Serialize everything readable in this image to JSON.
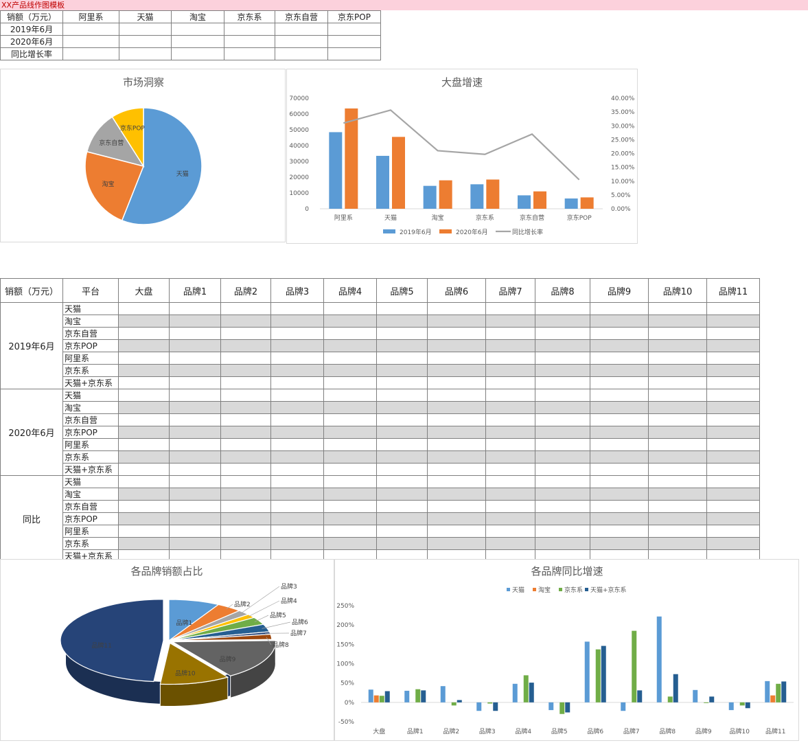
{
  "title_bar": "XX产品线作图模板",
  "top_table": {
    "header": [
      "销额（万元）",
      "阿里系",
      "天猫",
      "淘宝",
      "京东系",
      "京东自营",
      "京东POP"
    ],
    "rows": [
      "2019年6月",
      "2020年6月",
      "同比增长率"
    ]
  },
  "main_table": {
    "header": [
      "销额（万元）",
      "平台",
      "大盘",
      "品牌1",
      "品牌2",
      "品牌3",
      "品牌4",
      "品牌5",
      "品牌6",
      "品牌7",
      "品牌8",
      "品牌9",
      "品牌10",
      "品牌11"
    ],
    "groups": [
      {
        "label": "2019年6月",
        "platforms": [
          "天猫",
          "淘宝",
          "京东自营",
          "京东POP",
          "阿里系",
          "京东系",
          "天猫+京东系"
        ]
      },
      {
        "label": "2020年6月",
        "platforms": [
          "天猫",
          "淘宝",
          "京东自营",
          "京东POP",
          "阿里系",
          "京东系",
          "天猫+京东系"
        ]
      },
      {
        "label": "同比",
        "platforms": [
          "天猫",
          "淘宝",
          "京东自营",
          "京东POP",
          "阿里系",
          "京东系",
          "天猫+京东系"
        ]
      }
    ]
  },
  "colors": {
    "blue": "#5b9bd5",
    "orange": "#ed7d31",
    "gray": "#a5a5a5",
    "yellow": "#ffc000",
    "darkblue": "#264478",
    "green": "#70ad47",
    "navy": "#255e91",
    "brown": "#997300",
    "darkgray": "#636363"
  },
  "chart_data": [
    {
      "type": "pie",
      "title": "市场洞察",
      "labels": [
        "天猫",
        "淘宝",
        "京东自营",
        "京东POP"
      ],
      "values": [
        56,
        23,
        12,
        9
      ]
    },
    {
      "type": "bar",
      "title": "大盘增速",
      "categories": [
        "阿里系",
        "天猫",
        "淘宝",
        "京东系",
        "京东自营",
        "京东POP"
      ],
      "series": [
        {
          "name": "2019年6月",
          "values": [
            48500,
            33500,
            14500,
            15500,
            8500,
            6500
          ]
        },
        {
          "name": "2020年6月",
          "values": [
            63500,
            45500,
            18000,
            18500,
            11000,
            7200
          ]
        },
        {
          "name": "同比增长率",
          "values": [
            0.31,
            0.357,
            0.21,
            0.197,
            0.27,
            0.105
          ],
          "axis": "secondary",
          "type": "line"
        }
      ],
      "y_ticks": [
        "70000",
        "60000",
        "50000",
        "40000",
        "30000",
        "20000",
        "10000",
        "0"
      ],
      "y2_ticks": [
        "40.00%",
        "35.00%",
        "30.00%",
        "25.00%",
        "20.00%",
        "15.00%",
        "10.00%",
        "5.00%",
        "0.00%"
      ],
      "ylim": [
        0,
        70000
      ],
      "y2lim": [
        0,
        0.4
      ]
    },
    {
      "type": "pie",
      "title": "各品牌销额占比",
      "labels": [
        "品牌1",
        "品牌2",
        "品牌3",
        "品牌4",
        "品牌5",
        "品牌6",
        "品牌7",
        "品牌8",
        "品牌9",
        "品牌10",
        "品牌11"
      ],
      "values": [
        8,
        4,
        2,
        1.5,
        3,
        3,
        1,
        2,
        16,
        11,
        48.5
      ]
    },
    {
      "type": "bar",
      "title": "各品牌同比增速",
      "categories": [
        "大盘",
        "品牌1",
        "品牌2",
        "品牌3",
        "品牌4",
        "品牌5",
        "品牌6",
        "品牌7",
        "品牌8",
        "品牌9",
        "品牌10",
        "品牌11"
      ],
      "series": [
        {
          "name": "天猫",
          "values": [
            33,
            30,
            42,
            -22,
            48,
            -20,
            157,
            -22,
            222,
            32,
            -20,
            55
          ]
        },
        {
          "name": "淘宝",
          "values": [
            18,
            0,
            0,
            0,
            0,
            0,
            0,
            0,
            0,
            0,
            0,
            18
          ]
        },
        {
          "name": "京东系",
          "values": [
            17,
            34,
            -8,
            -3,
            70,
            -30,
            137,
            185,
            15,
            0,
            -8,
            48
          ]
        },
        {
          "name": "天猫+京东系",
          "values": [
            29,
            31,
            6,
            -22,
            51,
            -26,
            146,
            31,
            73,
            15,
            -15,
            54
          ]
        }
      ],
      "y_ticks": [
        "250%",
        "200%",
        "150%",
        "100%",
        "50%",
        "0%",
        "-50%"
      ],
      "ylim": [
        -50,
        250
      ]
    }
  ]
}
